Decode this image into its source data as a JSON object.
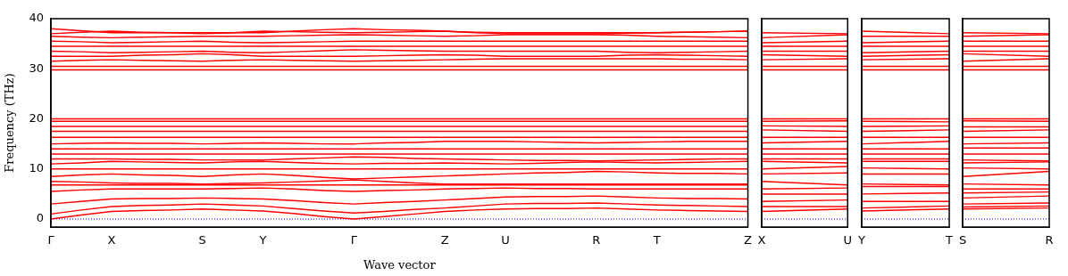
{
  "chart_data": [
    {
      "type": "line",
      "xlabel": "Wave vector",
      "ylabel": "Frequency (THz)",
      "marker": "none",
      "categories": [
        "Γ",
        null,
        "X",
        null,
        null,
        "S",
        null,
        "Y",
        null,
        null,
        "Γ",
        null,
        null,
        "Z",
        null,
        "U",
        null,
        null,
        "R",
        null,
        "T",
        null,
        null,
        "Z"
      ],
      "ylim": [
        -1.6,
        40
      ],
      "yticks": [
        0,
        10,
        20,
        30,
        40
      ],
      "ref_lines": [
        {
          "axis": "y",
          "value": 0,
          "color": "#0000ff",
          "line_style": "dotted"
        }
      ],
      "series": [
        {
          "color": "#ff0000",
          "values": [
            0,
            0.8,
            1.5,
            1.7,
            1.8,
            2,
            1.8,
            1.6,
            1.1,
            0.5,
            0,
            0.5,
            1,
            1.5,
            1.8,
            2,
            2.1,
            2.1,
            2.2,
            2,
            1.8,
            1.7,
            1.6,
            1.5
          ]
        },
        {
          "color": "#ff0000",
          "values": [
            1,
            1.8,
            2.5,
            2.7,
            2.8,
            3,
            2.8,
            2.6,
            2.1,
            1.6,
            1.2,
            1.5,
            1.9,
            2.2,
            2.6,
            3,
            3.1,
            3.1,
            3.2,
            3,
            2.8,
            2.7,
            2.6,
            2.5
          ]
        },
        {
          "color": "#ff0000",
          "values": [
            3,
            3.5,
            4,
            4.1,
            4.1,
            4.2,
            4.1,
            4,
            3.7,
            3.3,
            3,
            3.3,
            3.5,
            3.8,
            4.1,
            4.4,
            4.5,
            4.5,
            4.6,
            4.4,
            4.2,
            4.1,
            4.1,
            4
          ]
        },
        {
          "color": "#ff0000",
          "values": [
            5.5,
            5.8,
            6,
            6,
            6,
            6,
            6.1,
            6.2,
            6,
            5.7,
            5.5,
            5.7,
            5.8,
            6,
            6.1,
            6.2,
            6.1,
            6.1,
            6,
            6,
            6,
            6,
            6,
            6
          ]
        },
        {
          "color": "#ff0000",
          "values": [
            6.8,
            6.8,
            6.8,
            6.8,
            6.8,
            6.8,
            6.8,
            6.8,
            6.8,
            6.8,
            6.8,
            6.8,
            6.8,
            6.8,
            6.8,
            6.8,
            6.8,
            6.8,
            6.8,
            6.8,
            6.8,
            6.8,
            6.8,
            6.8
          ]
        },
        {
          "color": "#ff0000",
          "values": [
            7.5,
            7.4,
            7.2,
            7.1,
            7.1,
            7,
            7.1,
            7.2,
            7.4,
            7.6,
            7.8,
            7.5,
            7.2,
            7,
            7,
            7,
            7,
            7,
            7,
            7,
            7,
            7,
            7,
            7
          ]
        },
        {
          "color": "#ff0000",
          "values": [
            8.5,
            8.8,
            9,
            8.8,
            8.7,
            8.5,
            8.8,
            9,
            8.7,
            8.3,
            8,
            8.2,
            8.4,
            8.6,
            8.8,
            9,
            9.2,
            9.3,
            9.5,
            9.4,
            9.2,
            9.1,
            9.1,
            9
          ]
        },
        {
          "color": "#ff0000",
          "values": [
            10,
            10,
            10,
            10,
            10,
            10,
            10,
            10,
            10,
            10,
            10,
            10,
            10,
            10,
            10,
            10,
            10,
            10,
            10,
            10,
            10,
            10,
            10,
            10
          ]
        },
        {
          "color": "#ff0000",
          "values": [
            11,
            11.2,
            11.5,
            11.4,
            11.3,
            11.2,
            11.4,
            11.5,
            11.3,
            11.1,
            11,
            11.1,
            11.1,
            11.2,
            11.1,
            11,
            11.1,
            11.3,
            11.4,
            11.3,
            11.2,
            11.3,
            11.4,
            11.5
          ]
        },
        {
          "color": "#ff0000",
          "values": [
            12,
            12,
            12,
            11.9,
            11.9,
            11.8,
            11.8,
            11.8,
            12,
            12.2,
            12.4,
            12.3,
            12.1,
            12,
            11.9,
            11.8,
            11.7,
            11.7,
            11.6,
            11.7,
            11.8,
            11.9,
            12,
            12
          ]
        },
        {
          "color": "#ff0000",
          "values": [
            13,
            13,
            13,
            13,
            13,
            13,
            13,
            13,
            13,
            13,
            13,
            13,
            13,
            13,
            13,
            13,
            13,
            13,
            13,
            13,
            13,
            13,
            13,
            13
          ]
        },
        {
          "color": "#ff0000",
          "values": [
            14,
            14,
            14,
            14,
            14,
            14,
            14,
            14,
            14,
            14,
            14,
            14,
            14,
            14,
            14,
            14,
            14,
            14,
            14,
            14,
            14,
            14,
            14,
            14
          ]
        },
        {
          "color": "#ff0000",
          "values": [
            15,
            15.1,
            15.2,
            15.1,
            15.1,
            15,
            15.1,
            15.2,
            15.1,
            15,
            15,
            15.2,
            15.3,
            15.5,
            15.5,
            15.5,
            15.4,
            15.3,
            15.2,
            15.3,
            15.4,
            15.5,
            15.5,
            15.5
          ]
        },
        {
          "color": "#ff0000",
          "values": [
            16.3,
            16.3,
            16.3,
            16.3,
            16.3,
            16.3,
            16.3,
            16.3,
            16.3,
            16.3,
            16.3,
            16.3,
            16.3,
            16.3,
            16.3,
            16.3,
            16.3,
            16.3,
            16.3,
            16.3,
            16.3,
            16.3,
            16.3,
            16.3
          ]
        },
        {
          "color": "#ff0000",
          "values": [
            17.5,
            17.5,
            17.5,
            17.5,
            17.5,
            17.5,
            17.5,
            17.5,
            17.5,
            17.5,
            17.5,
            17.5,
            17.5,
            17.5,
            17.5,
            17.5,
            17.5,
            17.5,
            17.5,
            17.5,
            17.5,
            17.5,
            17.5,
            17.5
          ]
        },
        {
          "color": "#ff0000",
          "values": [
            18.5,
            18.5,
            18.5,
            18.5,
            18.5,
            18.5,
            18.5,
            18.5,
            18.5,
            18.5,
            18.5,
            18.5,
            18.5,
            18.5,
            18.5,
            18.5,
            18.5,
            18.5,
            18.5,
            18.5,
            18.5,
            18.5,
            18.5,
            18.5
          ]
        },
        {
          "color": "#ff0000",
          "values": [
            19.5,
            19.5,
            19.5,
            19.5,
            19.5,
            19.5,
            19.5,
            19.5,
            19.5,
            19.5,
            19.5,
            19.5,
            19.5,
            19.5,
            19.5,
            19.5,
            19.5,
            19.5,
            19.5,
            19.5,
            19.5,
            19.5,
            19.5,
            19.5
          ]
        },
        {
          "color": "#ff0000",
          "values": [
            20,
            20,
            20,
            20,
            20,
            20,
            20,
            20,
            20,
            20,
            20,
            20,
            20,
            20,
            20,
            20,
            20,
            20,
            20,
            20,
            20,
            20,
            20,
            20
          ]
        },
        {
          "color": "#ff0000",
          "values": [
            29.8,
            29.8,
            29.8,
            29.8,
            29.8,
            29.8,
            29.8,
            29.8,
            29.8,
            29.8,
            29.8,
            29.8,
            29.8,
            29.8,
            29.8,
            29.8,
            29.8,
            29.8,
            29.8,
            29.8,
            29.8,
            29.8,
            29.8,
            29.8
          ]
        },
        {
          "color": "#ff0000",
          "values": [
            30.5,
            30.5,
            30.5,
            30.5,
            30.5,
            30.5,
            30.5,
            30.5,
            30.5,
            30.5,
            30.5,
            30.5,
            30.5,
            30.5,
            30.5,
            30.5,
            30.5,
            30.5,
            30.5,
            30.5,
            30.5,
            30.5,
            30.5,
            30.5
          ]
        },
        {
          "color": "#ff0000",
          "values": [
            31.5,
            31.7,
            31.8,
            31.7,
            31.6,
            31.5,
            31.7,
            31.8,
            31.7,
            31.6,
            31.5,
            31.6,
            31.7,
            31.8,
            31.9,
            32,
            32,
            32,
            32,
            32,
            32,
            31.9,
            31.9,
            31.8
          ]
        },
        {
          "color": "#ff0000",
          "values": [
            32.5,
            32.5,
            32.5,
            32.7,
            32.8,
            33,
            32.8,
            32.5,
            32.5,
            32.5,
            32.5,
            32.6,
            32.7,
            32.8,
            32.7,
            32.5,
            32.5,
            32.5,
            32.5,
            32.7,
            32.8,
            32.7,
            32.6,
            32.5
          ]
        },
        {
          "color": "#ff0000",
          "values": [
            33.5,
            33.4,
            33.2,
            33.3,
            33.4,
            33.5,
            33.3,
            33.2,
            33.4,
            33.6,
            33.8,
            33.7,
            33.6,
            33.5,
            33.5,
            33.5,
            33.5,
            33.5,
            33.5,
            33.3,
            33.2,
            33.3,
            33.4,
            33.5
          ]
        },
        {
          "color": "#ff0000",
          "values": [
            34.5,
            34.5,
            34.5,
            34.5,
            34.5,
            34.5,
            34.5,
            34.5,
            34.5,
            34.5,
            34.5,
            34.5,
            34.5,
            34.5,
            34.5,
            34.5,
            34.5,
            34.5,
            34.5,
            34.5,
            34.5,
            34.5,
            34.5,
            34.5
          ]
        },
        {
          "color": "#ff0000",
          "values": [
            35.5,
            35.4,
            35.2,
            35.3,
            35.4,
            35.5,
            35.3,
            35.2,
            35.3,
            35.4,
            35.5,
            35.5,
            35.5,
            35.5,
            35.5,
            35.5,
            35.5,
            35.5,
            35.5,
            35.5,
            35.5,
            35.5,
            35.5,
            35.5
          ]
        },
        {
          "color": "#ff0000",
          "values": [
            36.5,
            36.3,
            36.2,
            36.3,
            36.4,
            36.5,
            36.5,
            36.5,
            36.6,
            36.7,
            36.8,
            36.7,
            36.6,
            36.5,
            36.6,
            36.8,
            36.8,
            36.8,
            36.8,
            36.7,
            36.5,
            36.4,
            36.3,
            36.2
          ]
        },
        {
          "color": "#ff0000",
          "values": [
            37,
            37.3,
            37.5,
            37.3,
            37.2,
            37,
            37.2,
            37.5,
            37.4,
            37.3,
            37.2,
            37.3,
            37.4,
            37.5,
            37.2,
            37,
            37,
            37,
            37,
            37.1,
            37.2,
            37.3,
            37.4,
            37.5
          ]
        },
        {
          "color": "#ff0000",
          "values": [
            38,
            37.6,
            37.2,
            37.2,
            37.2,
            37.2,
            37.2,
            37.2,
            37.5,
            37.8,
            38,
            37.8,
            37.7,
            37.5,
            37.3,
            37.2,
            37.2,
            37.2,
            37.2,
            37.2,
            37.2,
            37.3,
            37.4,
            37.5
          ]
        }
      ]
    },
    {
      "type": "line",
      "marker": "none",
      "tick_labels": "x",
      "categories": [
        "X",
        "U"
      ],
      "ylim": [
        -1.6,
        40
      ],
      "yticks": [
        0,
        10,
        20,
        30,
        40
      ],
      "ref_lines": [
        {
          "axis": "y",
          "value": 0,
          "color": "#0000ff",
          "line_style": "dotted"
        }
      ],
      "series": [
        {
          "color": "#ff0000",
          "values": [
            1.5,
            2
          ]
        },
        {
          "color": "#ff0000",
          "values": [
            2.5,
            2.5
          ]
        },
        {
          "color": "#ff0000",
          "values": [
            3.5,
            3.8
          ]
        },
        {
          "color": "#ff0000",
          "values": [
            5,
            5
          ]
        },
        {
          "color": "#ff0000",
          "values": [
            6,
            6.2
          ]
        },
        {
          "color": "#ff0000",
          "values": [
            7.5,
            6.8
          ]
        },
        {
          "color": "#ff0000",
          "values": [
            9,
            9.2
          ]
        },
        {
          "color": "#ff0000",
          "values": [
            10,
            10.5
          ]
        },
        {
          "color": "#ff0000",
          "values": [
            11.5,
            11.2
          ]
        },
        {
          "color": "#ff0000",
          "values": [
            12,
            12
          ]
        },
        {
          "color": "#ff0000",
          "values": [
            13,
            13
          ]
        },
        {
          "color": "#ff0000",
          "values": [
            14,
            14
          ]
        },
        {
          "color": "#ff0000",
          "values": [
            15.2,
            15.5
          ]
        },
        {
          "color": "#ff0000",
          "values": [
            16.3,
            16.3
          ]
        },
        {
          "color": "#ff0000",
          "values": [
            17.8,
            17.5
          ]
        },
        {
          "color": "#ff0000",
          "values": [
            18.6,
            18.5
          ]
        },
        {
          "color": "#ff0000",
          "values": [
            19.5,
            19.6
          ]
        },
        {
          "color": "#ff0000",
          "values": [
            20,
            20
          ]
        },
        {
          "color": "#ff0000",
          "values": [
            29.8,
            29.8
          ]
        },
        {
          "color": "#ff0000",
          "values": [
            30.5,
            30.5
          ]
        },
        {
          "color": "#ff0000",
          "values": [
            31.8,
            32
          ]
        },
        {
          "color": "#ff0000",
          "values": [
            32.8,
            32.5
          ]
        },
        {
          "color": "#ff0000",
          "values": [
            33.5,
            33.5
          ]
        },
        {
          "color": "#ff0000",
          "values": [
            34.5,
            34.5
          ]
        },
        {
          "color": "#ff0000",
          "values": [
            35.2,
            35.5
          ]
        },
        {
          "color": "#ff0000",
          "values": [
            36.2,
            36.8
          ]
        },
        {
          "color": "#ff0000",
          "values": [
            37.2,
            37
          ]
        }
      ]
    },
    {
      "type": "line",
      "marker": "none",
      "tick_labels": "x",
      "categories": [
        "Y",
        "T"
      ],
      "ylim": [
        -1.6,
        40
      ],
      "yticks": [
        0,
        10,
        20,
        30,
        40
      ],
      "ref_lines": [
        {
          "axis": "y",
          "value": 0,
          "color": "#0000ff",
          "line_style": "dotted"
        }
      ],
      "series": [
        {
          "color": "#ff0000",
          "values": [
            1.6,
            2
          ]
        },
        {
          "color": "#ff0000",
          "values": [
            2.2,
            2.6
          ]
        },
        {
          "color": "#ff0000",
          "values": [
            3.5,
            3.5
          ]
        },
        {
          "color": "#ff0000",
          "values": [
            5,
            5.2
          ]
        },
        {
          "color": "#ff0000",
          "values": [
            6.5,
            6.5
          ]
        },
        {
          "color": "#ff0000",
          "values": [
            7,
            6.8
          ]
        },
        {
          "color": "#ff0000",
          "values": [
            9,
            9
          ]
        },
        {
          "color": "#ff0000",
          "values": [
            10.2,
            10
          ]
        },
        {
          "color": "#ff0000",
          "values": [
            11.5,
            11.5
          ]
        },
        {
          "color": "#ff0000",
          "values": [
            12,
            12
          ]
        },
        {
          "color": "#ff0000",
          "values": [
            13,
            13
          ]
        },
        {
          "color": "#ff0000",
          "values": [
            14,
            14
          ]
        },
        {
          "color": "#ff0000",
          "values": [
            15,
            15.5
          ]
        },
        {
          "color": "#ff0000",
          "values": [
            16.3,
            16.3
          ]
        },
        {
          "color": "#ff0000",
          "values": [
            17.5,
            17.8
          ]
        },
        {
          "color": "#ff0000",
          "values": [
            18.5,
            18.6
          ]
        },
        {
          "color": "#ff0000",
          "values": [
            19.5,
            19.4
          ]
        },
        {
          "color": "#ff0000",
          "values": [
            20,
            20
          ]
        },
        {
          "color": "#ff0000",
          "values": [
            29.8,
            29.8
          ]
        },
        {
          "color": "#ff0000",
          "values": [
            30.5,
            30.5
          ]
        },
        {
          "color": "#ff0000",
          "values": [
            31.8,
            32
          ]
        },
        {
          "color": "#ff0000",
          "values": [
            32.5,
            32.8
          ]
        },
        {
          "color": "#ff0000",
          "values": [
            33.2,
            33.5
          ]
        },
        {
          "color": "#ff0000",
          "values": [
            34.5,
            34.5
          ]
        },
        {
          "color": "#ff0000",
          "values": [
            35.2,
            35.5
          ]
        },
        {
          "color": "#ff0000",
          "values": [
            36.5,
            36.5
          ]
        },
        {
          "color": "#ff0000",
          "values": [
            37.5,
            37
          ]
        }
      ]
    },
    {
      "type": "line",
      "marker": "none",
      "tick_labels": "x",
      "categories": [
        "S",
        "R"
      ],
      "ylim": [
        -1.6,
        40
      ],
      "yticks": [
        0,
        10,
        20,
        30,
        40
      ],
      "ref_lines": [
        {
          "axis": "y",
          "value": 0,
          "color": "#0000ff",
          "line_style": "dotted"
        }
      ],
      "series": [
        {
          "color": "#ff0000",
          "values": [
            2,
            2.2
          ]
        },
        {
          "color": "#ff0000",
          "values": [
            2.4,
            2.6
          ]
        },
        {
          "color": "#ff0000",
          "values": [
            3,
            3.2
          ]
        },
        {
          "color": "#ff0000",
          "values": [
            4.2,
            4.6
          ]
        },
        {
          "color": "#ff0000",
          "values": [
            5.2,
            5.4
          ]
        },
        {
          "color": "#ff0000",
          "values": [
            6,
            6
          ]
        },
        {
          "color": "#ff0000",
          "values": [
            7,
            6.8
          ]
        },
        {
          "color": "#ff0000",
          "values": [
            8.5,
            9.5
          ]
        },
        {
          "color": "#ff0000",
          "values": [
            10.2,
            10
          ]
        },
        {
          "color": "#ff0000",
          "values": [
            11.2,
            11.4
          ]
        },
        {
          "color": "#ff0000",
          "values": [
            11.8,
            11.6
          ]
        },
        {
          "color": "#ff0000",
          "values": [
            13,
            13
          ]
        },
        {
          "color": "#ff0000",
          "values": [
            14.2,
            14.2
          ]
        },
        {
          "color": "#ff0000",
          "values": [
            15,
            15.2
          ]
        },
        {
          "color": "#ff0000",
          "values": [
            16.3,
            16.3
          ]
        },
        {
          "color": "#ff0000",
          "values": [
            17.5,
            17.8
          ]
        },
        {
          "color": "#ff0000",
          "values": [
            18.4,
            18.4
          ]
        },
        {
          "color": "#ff0000",
          "values": [
            19.6,
            19.5
          ]
        },
        {
          "color": "#ff0000",
          "values": [
            20,
            20
          ]
        },
        {
          "color": "#ff0000",
          "values": [
            29.8,
            29.8
          ]
        },
        {
          "color": "#ff0000",
          "values": [
            30.5,
            30.5
          ]
        },
        {
          "color": "#ff0000",
          "values": [
            31.5,
            32
          ]
        },
        {
          "color": "#ff0000",
          "values": [
            33,
            32.5
          ]
        },
        {
          "color": "#ff0000",
          "values": [
            33.5,
            33.5
          ]
        },
        {
          "color": "#ff0000",
          "values": [
            34.5,
            34.5
          ]
        },
        {
          "color": "#ff0000",
          "values": [
            35.5,
            35.5
          ]
        },
        {
          "color": "#ff0000",
          "values": [
            36.5,
            36.8
          ]
        },
        {
          "color": "#ff0000",
          "values": [
            37.2,
            37
          ]
        }
      ]
    }
  ]
}
